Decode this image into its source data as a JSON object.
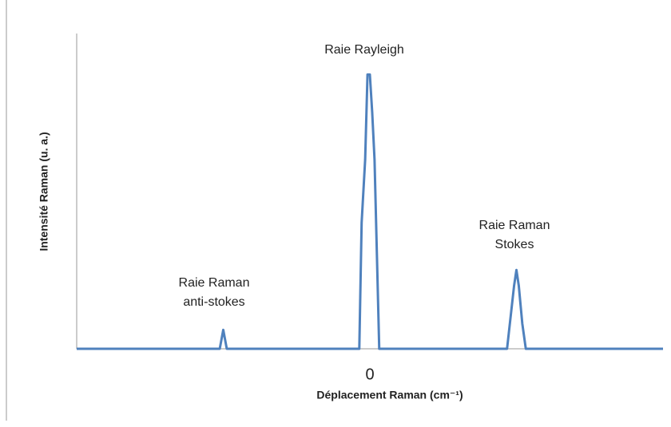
{
  "chart_data": {
    "type": "line",
    "x": [
      -50,
      -25.6,
      -25,
      -24.4,
      -1.8,
      -1.4,
      -0.8,
      -0.4,
      0,
      0.4,
      0.8,
      1.2,
      1.6,
      23.4,
      24,
      24.6,
      25,
      25.4,
      26,
      26.6,
      50
    ],
    "values": [
      0,
      0,
      6,
      0,
      0,
      40,
      60,
      87,
      87,
      75,
      60,
      30,
      0,
      0,
      10,
      20,
      25,
      20,
      8,
      0,
      0
    ],
    "color": "#4f81bd",
    "xlim": [
      -50,
      50
    ],
    "xticks": [
      0
    ],
    "ylim": [
      0,
      100
    ],
    "x_label": "Déplacement Raman (cm⁻¹)",
    "y_label": "Intensité Raman (u. a.)",
    "annotations": [
      [
        "Raie Rayleigh"
      ],
      [
        "Raie Raman",
        "anti-stokes"
      ],
      [
        "Raie Raman",
        "Stokes"
      ]
    ]
  }
}
